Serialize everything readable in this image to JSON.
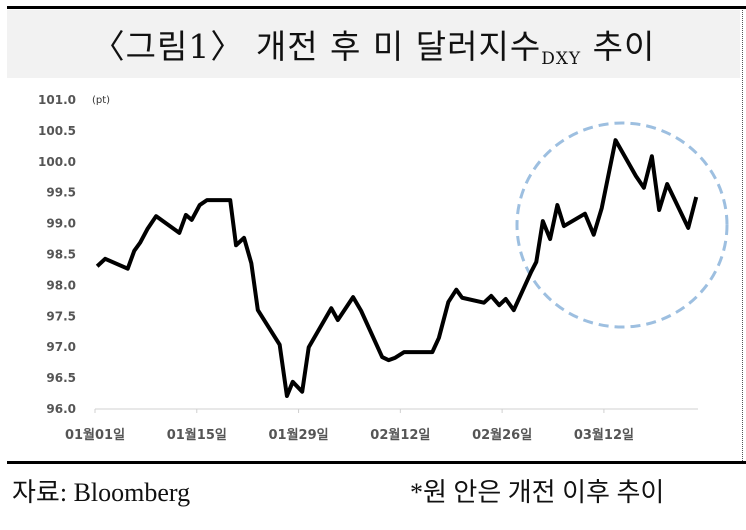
{
  "title": {
    "main": "〈그림1〉 개전 후 미 달러지수",
    "sub": "DXY",
    "suffix": " 추이"
  },
  "footer": {
    "source": "자료: Bloomberg",
    "note": "*원 안은 개전 이후 추이"
  },
  "colors": {
    "line": "#000000",
    "highlight_circle": "#9dbfe0",
    "title_bg": "#f2f2f2"
  },
  "chart_data": {
    "type": "line",
    "title": "〈그림1〉 개전 후 미 달러지수DXY 추이",
    "ylabel": "(pt)",
    "xlabel": "",
    "ylim": [
      96.0,
      101.0
    ],
    "yticks": [
      "96.0",
      "96.5",
      "97.0",
      "97.5",
      "98.0",
      "98.5",
      "99.0",
      "99.5",
      "100.0",
      "100.5",
      "101.0"
    ],
    "xticks": [
      "01월01일",
      "01월15일",
      "01월29일",
      "02월12일",
      "02월26일",
      "03월12일"
    ],
    "x_unit": "days since 01월01일",
    "x_range": [
      0,
      84
    ],
    "annotation": "dashed circle highlighting post-war period (from ~early March)",
    "series": [
      {
        "name": "DXY",
        "x": [
          0.3,
          1.4,
          4.5,
          5.4,
          6.2,
          7.2,
          8.4,
          11.6,
          12.5,
          13.3,
          14.4,
          15.4,
          18.6,
          19.4,
          20.5,
          21.5,
          22.4,
          25.4,
          26.4,
          27.2,
          28.5,
          29.4,
          32.5,
          33.4,
          35.5,
          36.6,
          39.5,
          40.4,
          41.3,
          42.5,
          46.4,
          47.3,
          48.6,
          49.7,
          50.5,
          53.5,
          54.5,
          55.6,
          56.5,
          57.6,
          60.0,
          60.7,
          61.6,
          62.6,
          63.6,
          64.5,
          67.4,
          68.6,
          69.7,
          71.6,
          74.4,
          75.5,
          76.6,
          77.6,
          78.7,
          81.6,
          82.7
        ],
        "values": [
          98.31,
          98.43,
          98.27,
          98.56,
          98.69,
          98.91,
          99.12,
          98.85,
          99.14,
          99.06,
          99.3,
          99.38,
          99.38,
          98.65,
          98.77,
          98.36,
          97.6,
          97.04,
          96.21,
          96.44,
          96.28,
          97.0,
          97.63,
          97.44,
          97.81,
          97.59,
          96.84,
          96.79,
          96.83,
          96.92,
          96.92,
          97.15,
          97.73,
          97.93,
          97.8,
          97.72,
          97.83,
          97.68,
          97.78,
          97.6,
          98.22,
          98.38,
          99.04,
          98.75,
          99.3,
          98.96,
          99.16,
          98.82,
          99.25,
          100.35,
          99.77,
          99.58,
          100.09,
          99.22,
          99.64,
          98.93,
          99.43
        ]
      }
    ]
  }
}
